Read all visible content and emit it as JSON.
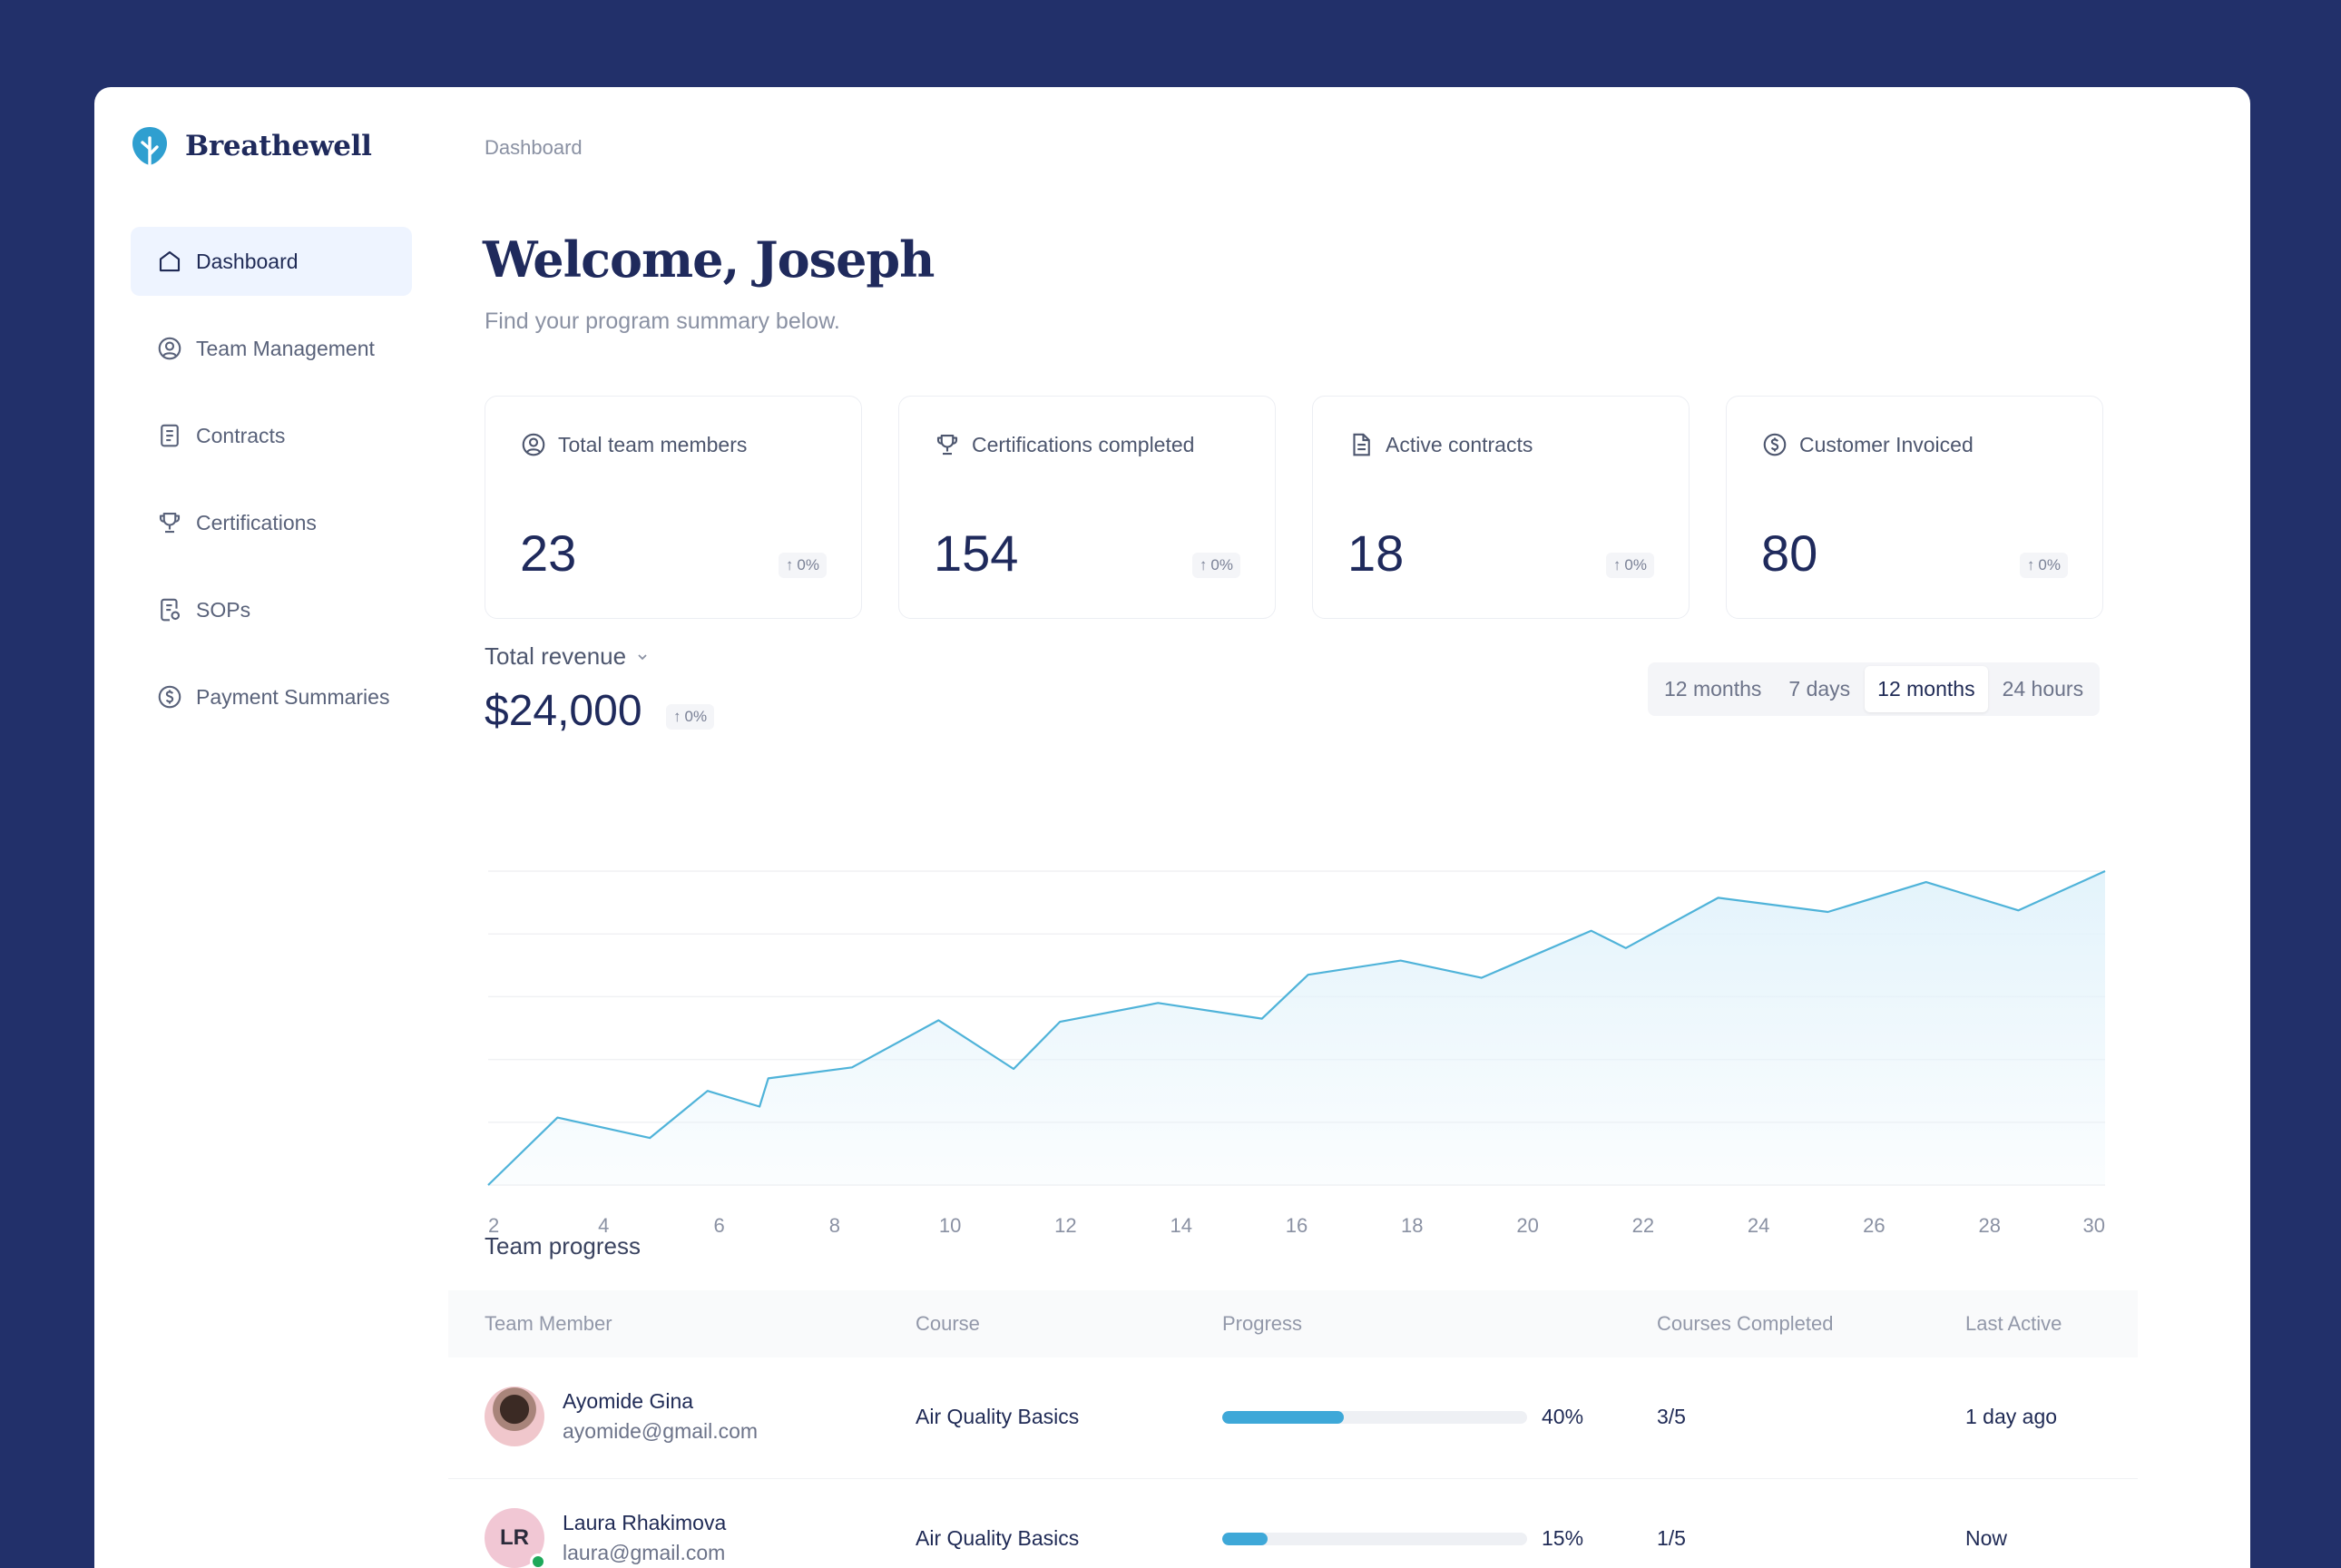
{
  "brand": {
    "name": "Breathewell"
  },
  "nav": {
    "items": [
      {
        "label": "Dashboard",
        "icon": "home-icon",
        "active": true
      },
      {
        "label": "Team Management",
        "icon": "user-circle-icon",
        "active": false
      },
      {
        "label": "Contracts",
        "icon": "document-icon",
        "active": false
      },
      {
        "label": "Certifications",
        "icon": "trophy-icon",
        "active": false
      },
      {
        "label": "SOPs",
        "icon": "file-settings-icon",
        "active": false
      },
      {
        "label": "Payment Summaries",
        "icon": "dollar-circle-icon",
        "active": false
      }
    ]
  },
  "breadcrumb": "Dashboard",
  "header": {
    "title": "Welcome, Joseph",
    "subtitle": "Find your program summary below."
  },
  "stats": [
    {
      "label": "Total team members",
      "value": "23",
      "change": "0%",
      "icon": "user-circle-icon"
    },
    {
      "label": "Certifications completed",
      "value": "154",
      "change": "0%",
      "icon": "trophy-icon"
    },
    {
      "label": "Active contracts",
      "value": "18",
      "change": "0%",
      "icon": "document-icon"
    },
    {
      "label": "Customer Invoiced",
      "value": "80",
      "change": "0%",
      "icon": "dollar-circle-icon"
    }
  ],
  "revenue": {
    "title": "Total revenue",
    "value": "$24,000",
    "change": "0%",
    "ranges": [
      "12 months",
      "7 days",
      "12 months",
      "24 hours"
    ],
    "active_range_index": 2
  },
  "chart_data": {
    "type": "area",
    "x": [
      2,
      3.2,
      4.8,
      5.8,
      6.7,
      6.85,
      8.3,
      9.8,
      11.1,
      11.9,
      13.6,
      15.4,
      16.2,
      17.8,
      19.2,
      21.1,
      21.7,
      23.3,
      25.2,
      26.9,
      28.5,
      30
    ],
    "values": [
      0,
      4.3,
      3.0,
      6.0,
      5.0,
      6.8,
      7.5,
      10.5,
      7.4,
      10.4,
      11.6,
      10.6,
      13.4,
      14.3,
      13.2,
      16.2,
      15.1,
      18.3,
      17.4,
      19.3,
      17.5,
      20.0
    ],
    "x_ticks": [
      2,
      4,
      6,
      8,
      10,
      12,
      14,
      16,
      18,
      20,
      22,
      24,
      26,
      28,
      30
    ],
    "xlim": [
      2,
      30
    ],
    "ylim": [
      0,
      20
    ],
    "grid": true,
    "line_color": "#4fb3d9",
    "fill_color": "#e3f3fb"
  },
  "team": {
    "title": "Team progress",
    "columns": [
      "Team Member",
      "Course",
      "Progress",
      "Courses Completed",
      "Last Active"
    ],
    "rows": [
      {
        "name": "Ayomide Gina",
        "email": "ayomide@gmail.com",
        "course": "Air Quality Basics",
        "progress": 0.4,
        "progress_label": "40%",
        "completed": "3/5",
        "last_active": "1 day ago",
        "avatar": "photo",
        "initials": "",
        "online": false
      },
      {
        "name": "Laura Rhakimova",
        "email": "laura@gmail.com",
        "course": "Air Quality Basics",
        "progress": 0.15,
        "progress_label": "15%",
        "completed": "1/5",
        "last_active": "Now",
        "avatar": "initials",
        "initials": "LR",
        "online": true
      }
    ]
  },
  "colors": {
    "accent": "#3ea8d8",
    "brand_navy": "#22306a",
    "active_nav_bg": "#eef4ff"
  }
}
